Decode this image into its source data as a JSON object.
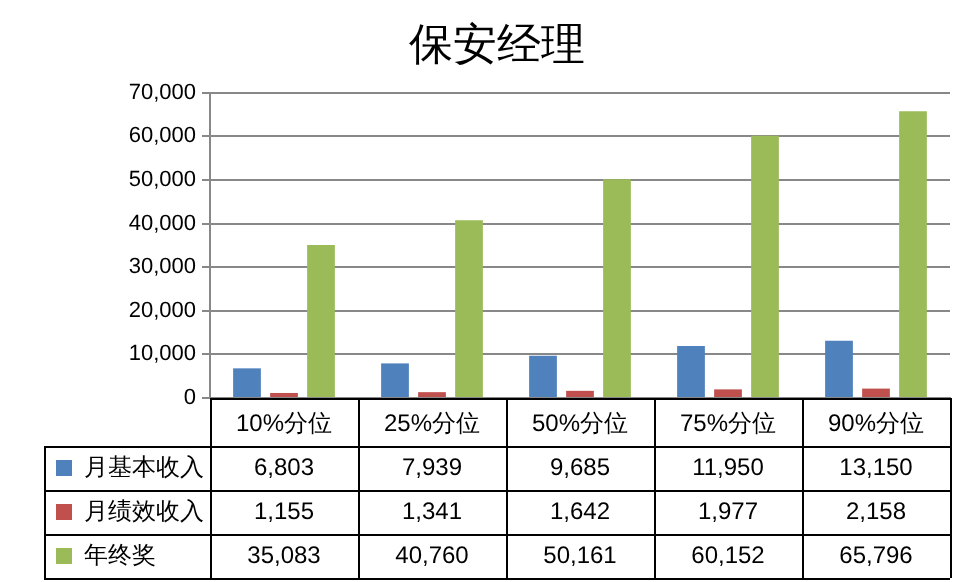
{
  "chart_data": {
    "type": "bar",
    "title": "保安经理",
    "categories": [
      "10%分位",
      "25%分位",
      "50%分位",
      "75%分位",
      "90%分位"
    ],
    "series": [
      {
        "name": "月基本收入",
        "color": "#4f81bd",
        "values": [
          6803,
          7939,
          9685,
          11950,
          13150
        ],
        "value_labels": [
          "6,803",
          "7,939",
          "9,685",
          "11,950",
          "13,150"
        ]
      },
      {
        "name": "月绩效收入",
        "color": "#c0504d",
        "values": [
          1155,
          1341,
          1642,
          1977,
          2158
        ],
        "value_labels": [
          "1,155",
          "1,341",
          "1,642",
          "1,977",
          "2,158"
        ]
      },
      {
        "name": "年终奖",
        "color": "#9bbb59",
        "values": [
          35083,
          40760,
          50161,
          60152,
          65796
        ],
        "value_labels": [
          "35,083",
          "40,760",
          "50,161",
          "60,152",
          "65,796"
        ]
      }
    ],
    "ylim": [
      0,
      70000
    ],
    "yticks": [
      0,
      {
        "value": 10000,
        "label": "10,000"
      },
      {
        "value": 20000,
        "label": "20,000"
      },
      {
        "value": 30000,
        "label": "30,000"
      },
      {
        "value": 40000,
        "label": "40,000"
      },
      {
        "value": 50000,
        "label": "50,000"
      },
      {
        "value": 60000,
        "label": "60,000"
      },
      {
        "value": 70000,
        "label": "70,000"
      }
    ],
    "grid": "y",
    "legend": "bottom"
  }
}
